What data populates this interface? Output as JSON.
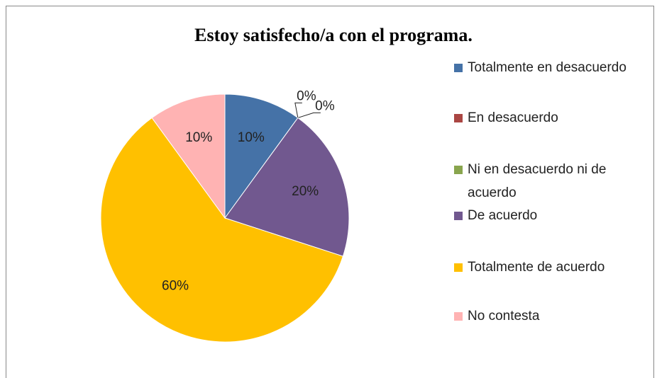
{
  "chart_data": {
    "type": "pie",
    "title": "Estoy satisfecho/a con el programa.",
    "categories": [
      "Totalmente en desacuerdo",
      "En desacuerdo",
      "Ni en desacuerdo ni de acuerdo",
      "De acuerdo",
      "Totalmente de acuerdo",
      "No contesta"
    ],
    "values": [
      10,
      0,
      0,
      20,
      60,
      10
    ],
    "value_labels": [
      "10%",
      "0%",
      "0%",
      "20%",
      "60%",
      "10%"
    ],
    "colors": [
      "#4572a7",
      "#aa4643",
      "#89a54e",
      "#71588f",
      "#ffc000",
      "#ffb3b3"
    ],
    "legend": "right"
  }
}
